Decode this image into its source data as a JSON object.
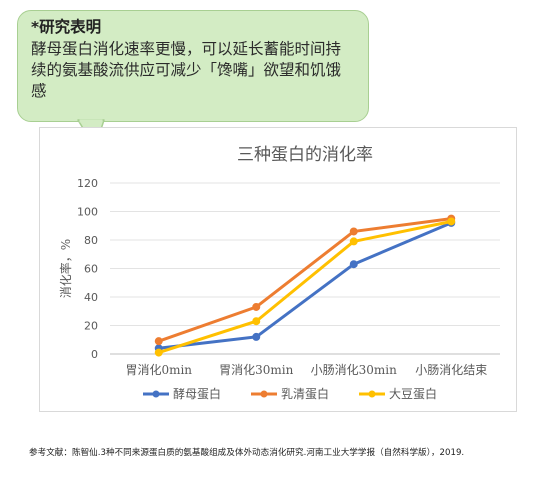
{
  "callout": {
    "title": "*研究表明",
    "body": "酵母蛋白消化速率更慢，可以延长蓄能时间持续的氨基酸流供应可减少「馋嘴」欲望和饥饿感"
  },
  "chart_data": {
    "type": "line",
    "title": "三种蛋白的消化率",
    "xlabel": "",
    "ylabel": "消化率，%",
    "categories": [
      "胃消化0min",
      "胃消化30min",
      "小肠消化30min",
      "小肠消化结束"
    ],
    "ylim": [
      0,
      120
    ],
    "yticks": [
      0,
      20,
      40,
      60,
      80,
      100,
      120
    ],
    "grid": true,
    "legend_position": "bottom",
    "series": [
      {
        "name": "酵母蛋白",
        "color": "#4472c4",
        "values": [
          4,
          12,
          63,
          92
        ]
      },
      {
        "name": "乳清蛋白",
        "color": "#ed7d31",
        "values": [
          9,
          33,
          86,
          95
        ]
      },
      {
        "name": "大豆蛋白",
        "color": "#ffc000",
        "values": [
          1,
          23,
          79,
          93
        ]
      }
    ]
  },
  "footnote": "参考文献：陈智仙.3种不同来源蛋白质的氨基酸组成及体外动态消化研究.河南工业大学学报（自然科学版），2019."
}
